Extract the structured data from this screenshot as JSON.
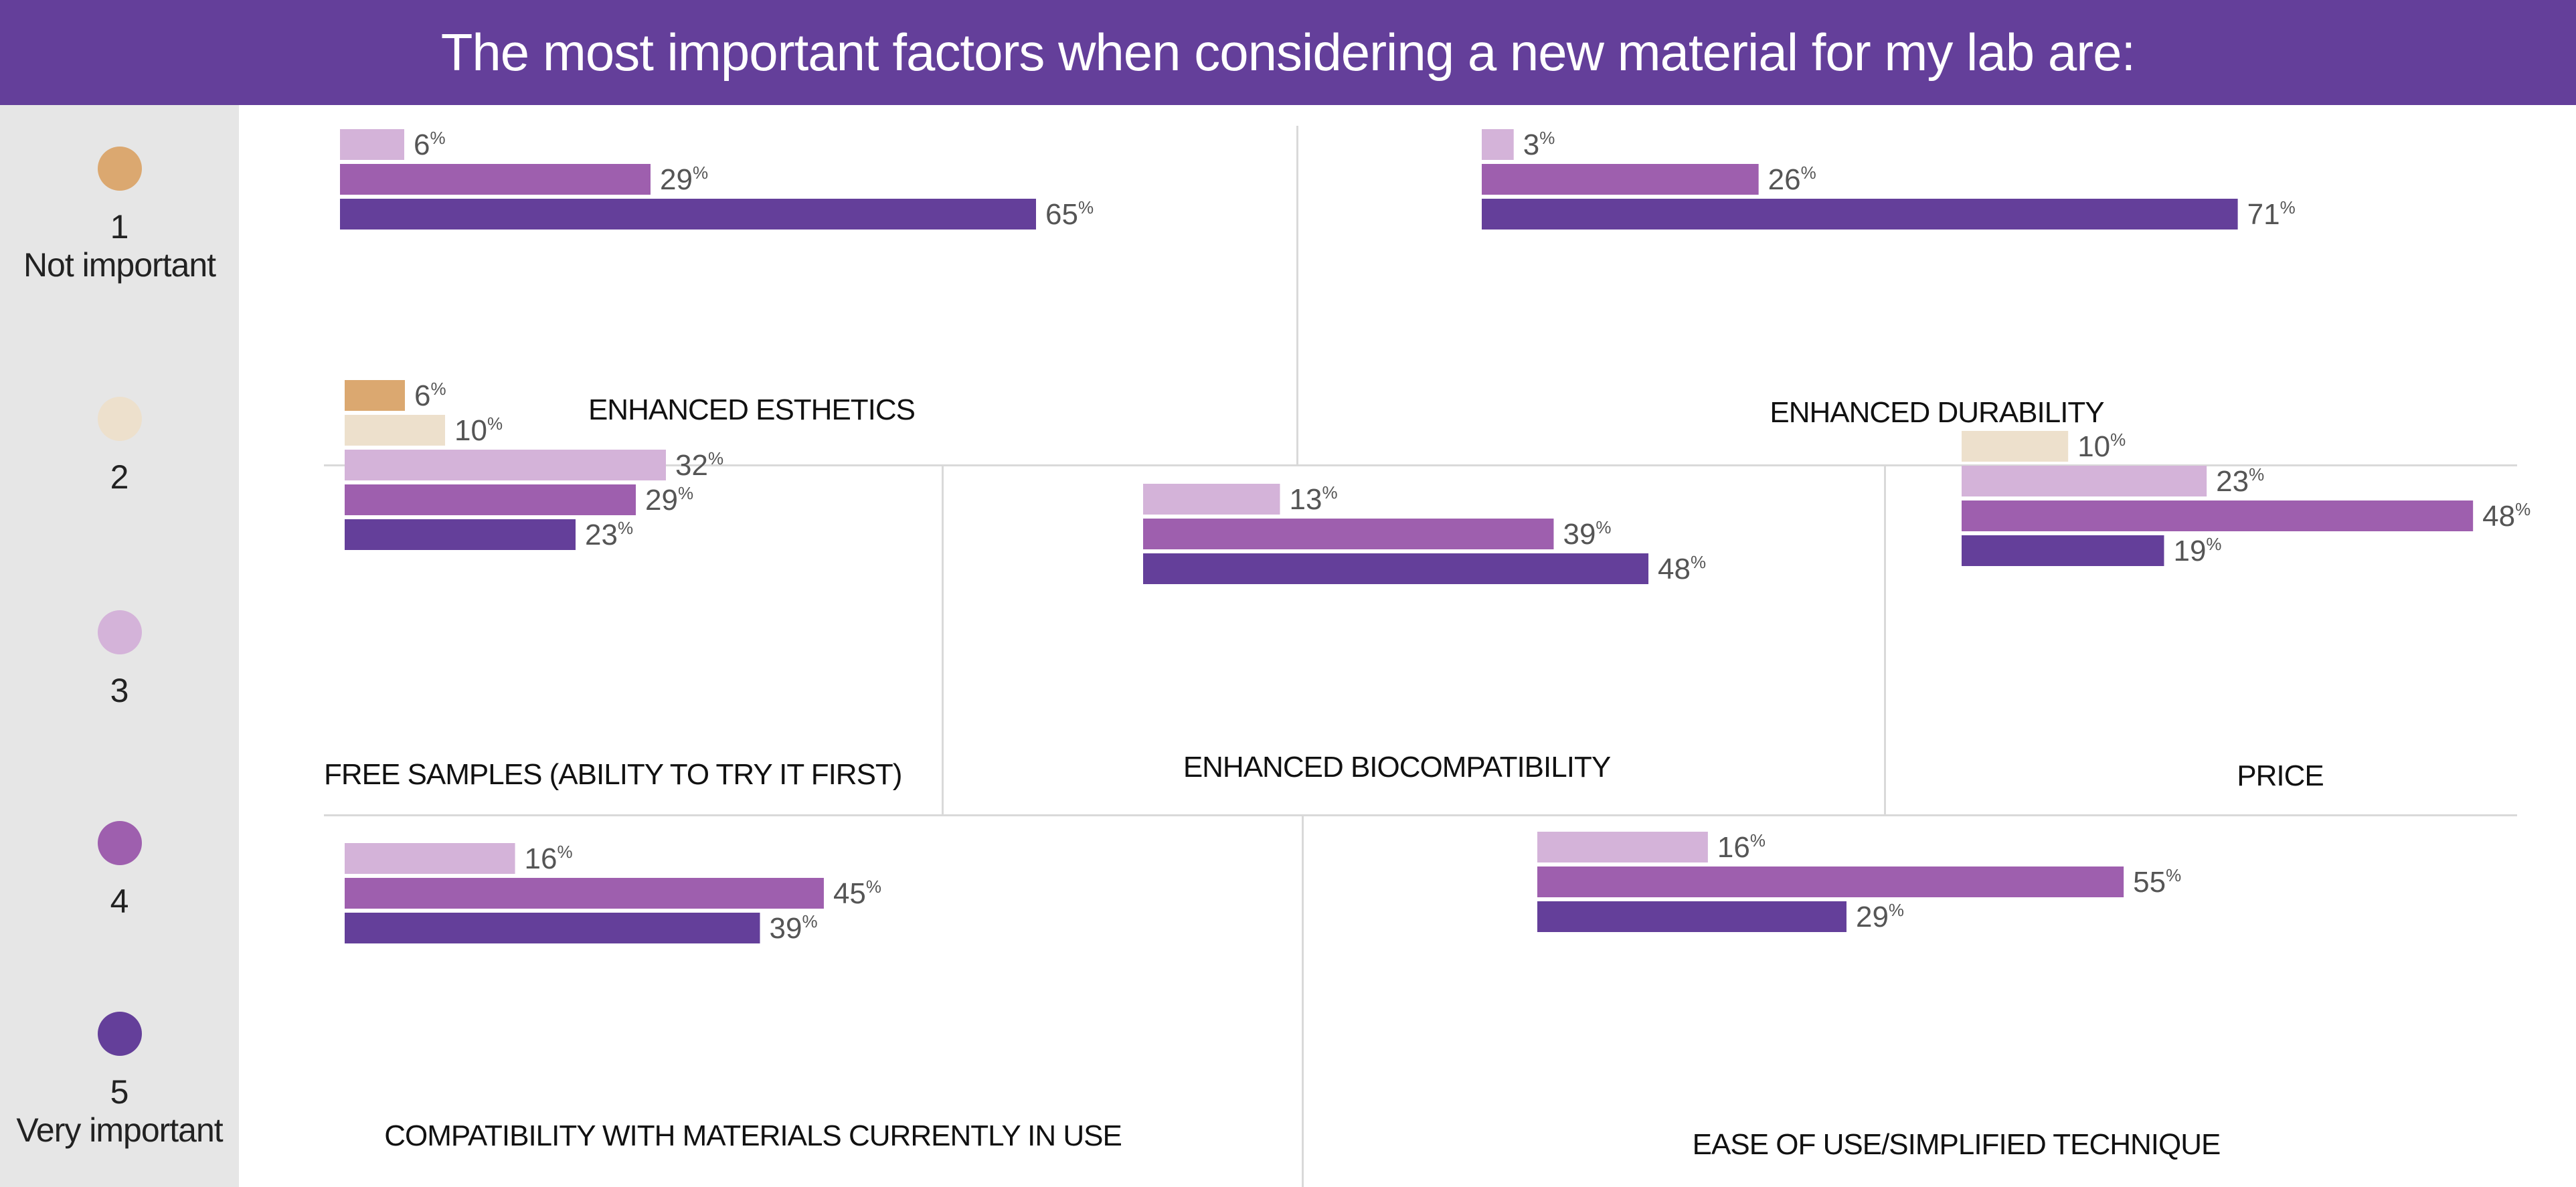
{
  "header": {
    "title": "The most important factors when considering a new material for my lab are:"
  },
  "colors": {
    "1": "#dba870",
    "2": "#ede0cc",
    "3": "#d4b3d9",
    "4": "#9e5fae",
    "5": "#643f9a",
    "header_bg": "#643f9a",
    "legend_bg": "#e6e6e6"
  },
  "legend": {
    "items": [
      {
        "rating": "1",
        "num": "1",
        "label": "Not important",
        "color": "#dba870"
      },
      {
        "rating": "2",
        "num": "2",
        "label": "",
        "color": "#ede0cc"
      },
      {
        "rating": "3",
        "num": "3",
        "label": "",
        "color": "#d4b3d9"
      },
      {
        "rating": "4",
        "num": "4",
        "label": "",
        "color": "#9e5fae"
      },
      {
        "rating": "5",
        "num": "5",
        "label": "Very important",
        "color": "#643f9a"
      }
    ]
  },
  "unit_symbol": "%",
  "chart_data": [
    {
      "type": "bar",
      "orientation": "horizontal",
      "title": "ENHANCED ESTHETICS",
      "series": [
        {
          "rating": "3",
          "value": 6
        },
        {
          "rating": "4",
          "value": 29
        },
        {
          "rating": "5",
          "value": 65
        }
      ]
    },
    {
      "type": "bar",
      "orientation": "horizontal",
      "title": "ENHANCED DURABILITY",
      "series": [
        {
          "rating": "3",
          "value": 3
        },
        {
          "rating": "4",
          "value": 26
        },
        {
          "rating": "5",
          "value": 71
        }
      ]
    },
    {
      "type": "bar",
      "orientation": "horizontal",
      "title": "FREE SAMPLES (ABILITY TO TRY IT FIRST)",
      "series": [
        {
          "rating": "1",
          "value": 6
        },
        {
          "rating": "2",
          "value": 10
        },
        {
          "rating": "3",
          "value": 32
        },
        {
          "rating": "4",
          "value": 29
        },
        {
          "rating": "5",
          "value": 23
        }
      ]
    },
    {
      "type": "bar",
      "orientation": "horizontal",
      "title": "ENHANCED BIOCOMPATIBILITY",
      "series": [
        {
          "rating": "3",
          "value": 13
        },
        {
          "rating": "4",
          "value": 39
        },
        {
          "rating": "5",
          "value": 48
        }
      ]
    },
    {
      "type": "bar",
      "orientation": "horizontal",
      "title": "PRICE",
      "series": [
        {
          "rating": "2",
          "value": 10
        },
        {
          "rating": "3",
          "value": 23
        },
        {
          "rating": "4",
          "value": 48
        },
        {
          "rating": "5",
          "value": 19
        }
      ]
    },
    {
      "type": "bar",
      "orientation": "horizontal",
      "title": "COMPATIBILITY WITH MATERIALS CURRENTLY IN USE",
      "series": [
        {
          "rating": "3",
          "value": 16
        },
        {
          "rating": "4",
          "value": 45
        },
        {
          "rating": "5",
          "value": 39
        }
      ]
    },
    {
      "type": "bar",
      "orientation": "horizontal",
      "title": "EASE OF USE/SIMPLIFIED TECHNIQUE",
      "series": [
        {
          "rating": "3",
          "value": 16
        },
        {
          "rating": "4",
          "value": 55
        },
        {
          "rating": "5",
          "value": 29
        }
      ]
    }
  ]
}
